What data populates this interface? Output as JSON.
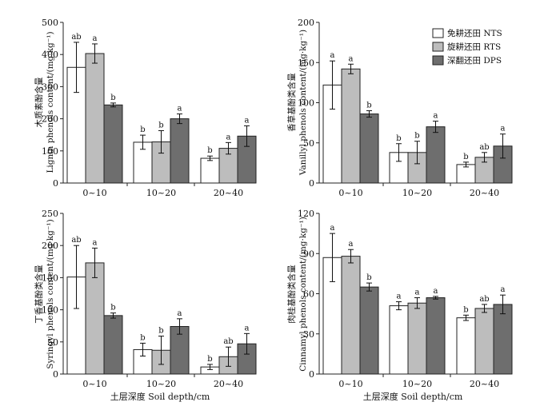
{
  "chart_data": [
    {
      "type": "bar",
      "categories": [
        "0~10",
        "10~20",
        "20~40"
      ],
      "ylabel_cn": "木质素酚含量",
      "ylabel_en": "Lignin phenols content/(mg·kg⁻¹)",
      "ylim": [
        0,
        500
      ],
      "yticks": [
        0,
        100,
        200,
        300,
        400,
        500
      ],
      "series": [
        {
          "name": "NTS",
          "values": [
            360,
            127,
            77
          ],
          "errors": [
            78,
            22,
            7
          ],
          "letters": [
            "ab",
            "b",
            "b"
          ]
        },
        {
          "name": "RTS",
          "values": [
            403,
            128,
            108
          ],
          "errors": [
            30,
            35,
            18
          ],
          "letters": [
            "a",
            "b",
            "a"
          ]
        },
        {
          "name": "DPS",
          "values": [
            243,
            200,
            146
          ],
          "errors": [
            6,
            15,
            32
          ],
          "letters": [
            "b",
            "a",
            "a"
          ]
        }
      ]
    },
    {
      "type": "bar",
      "categories": [
        "0~10",
        "10~20",
        "20~40"
      ],
      "ylabel_cn": "香草基酚类含量",
      "ylabel_en": "Vanillyl phenols content/(mg·kg⁻¹)",
      "ylim": [
        0,
        200
      ],
      "yticks": [
        0,
        50,
        100,
        150,
        200
      ],
      "series": [
        {
          "name": "NTS",
          "values": [
            122,
            38,
            23
          ],
          "errors": [
            30,
            11,
            3
          ],
          "letters": [
            "a",
            "b",
            "b"
          ]
        },
        {
          "name": "RTS",
          "values": [
            142,
            38,
            32
          ],
          "errors": [
            6,
            14,
            6
          ],
          "letters": [
            "a",
            "b",
            "ab"
          ]
        },
        {
          "name": "DPS",
          "values": [
            86,
            70,
            46
          ],
          "errors": [
            4,
            7,
            15
          ],
          "letters": [
            "b",
            "a",
            "a"
          ]
        }
      ]
    },
    {
      "type": "bar",
      "categories": [
        "0~10",
        "10~20",
        "20~40"
      ],
      "ylabel_cn": "丁香基酚类含量",
      "ylabel_en": "Syringyl phenols content/(mg·kg⁻¹)",
      "ylim": [
        0,
        250
      ],
      "yticks": [
        0,
        50,
        100,
        150,
        200,
        250
      ],
      "series": [
        {
          "name": "NTS",
          "values": [
            151,
            38,
            11
          ],
          "errors": [
            49,
            10,
            4
          ],
          "letters": [
            "ab",
            "b",
            "b"
          ]
        },
        {
          "name": "RTS",
          "values": [
            173,
            37,
            27
          ],
          "errors": [
            23,
            22,
            15
          ],
          "letters": [
            "a",
            "b",
            "ab"
          ]
        },
        {
          "name": "DPS",
          "values": [
            91,
            74,
            47
          ],
          "errors": [
            4,
            12,
            16
          ],
          "letters": [
            "b",
            "a",
            "a"
          ]
        }
      ]
    },
    {
      "type": "bar",
      "categories": [
        "0~10",
        "10~20",
        "20~40"
      ],
      "ylabel_cn": "肉桂基酚类含量",
      "ylabel_en": "Cinnamyl phenols content/(mg·kg⁻¹)",
      "ylim": [
        0,
        120
      ],
      "yticks": [
        0,
        30,
        60,
        90,
        120
      ],
      "series": [
        {
          "name": "NTS",
          "values": [
            87,
            51,
            42
          ],
          "errors": [
            18,
            3,
            2
          ],
          "letters": [
            "a",
            "a",
            "b"
          ]
        },
        {
          "name": "RTS",
          "values": [
            88,
            53,
            49
          ],
          "errors": [
            5,
            4,
            3
          ],
          "letters": [
            "a",
            "a",
            "ab"
          ]
        },
        {
          "name": "DPS",
          "values": [
            65,
            57,
            52
          ],
          "errors": [
            3,
            1,
            7
          ],
          "letters": [
            "b",
            "a",
            "a"
          ]
        }
      ]
    }
  ],
  "legend": [
    {
      "label": "免耕还田 NTS",
      "color": "#ffffff"
    },
    {
      "label": "旋耕还田 RTS",
      "color": "#bdbdbd"
    },
    {
      "label": "深翻还田 DPS",
      "color": "#6e6e6e"
    }
  ],
  "xlabel": "土层深度 Soil depth/cm",
  "series_colors": [
    "#ffffff",
    "#bdbdbd",
    "#6e6e6e"
  ]
}
